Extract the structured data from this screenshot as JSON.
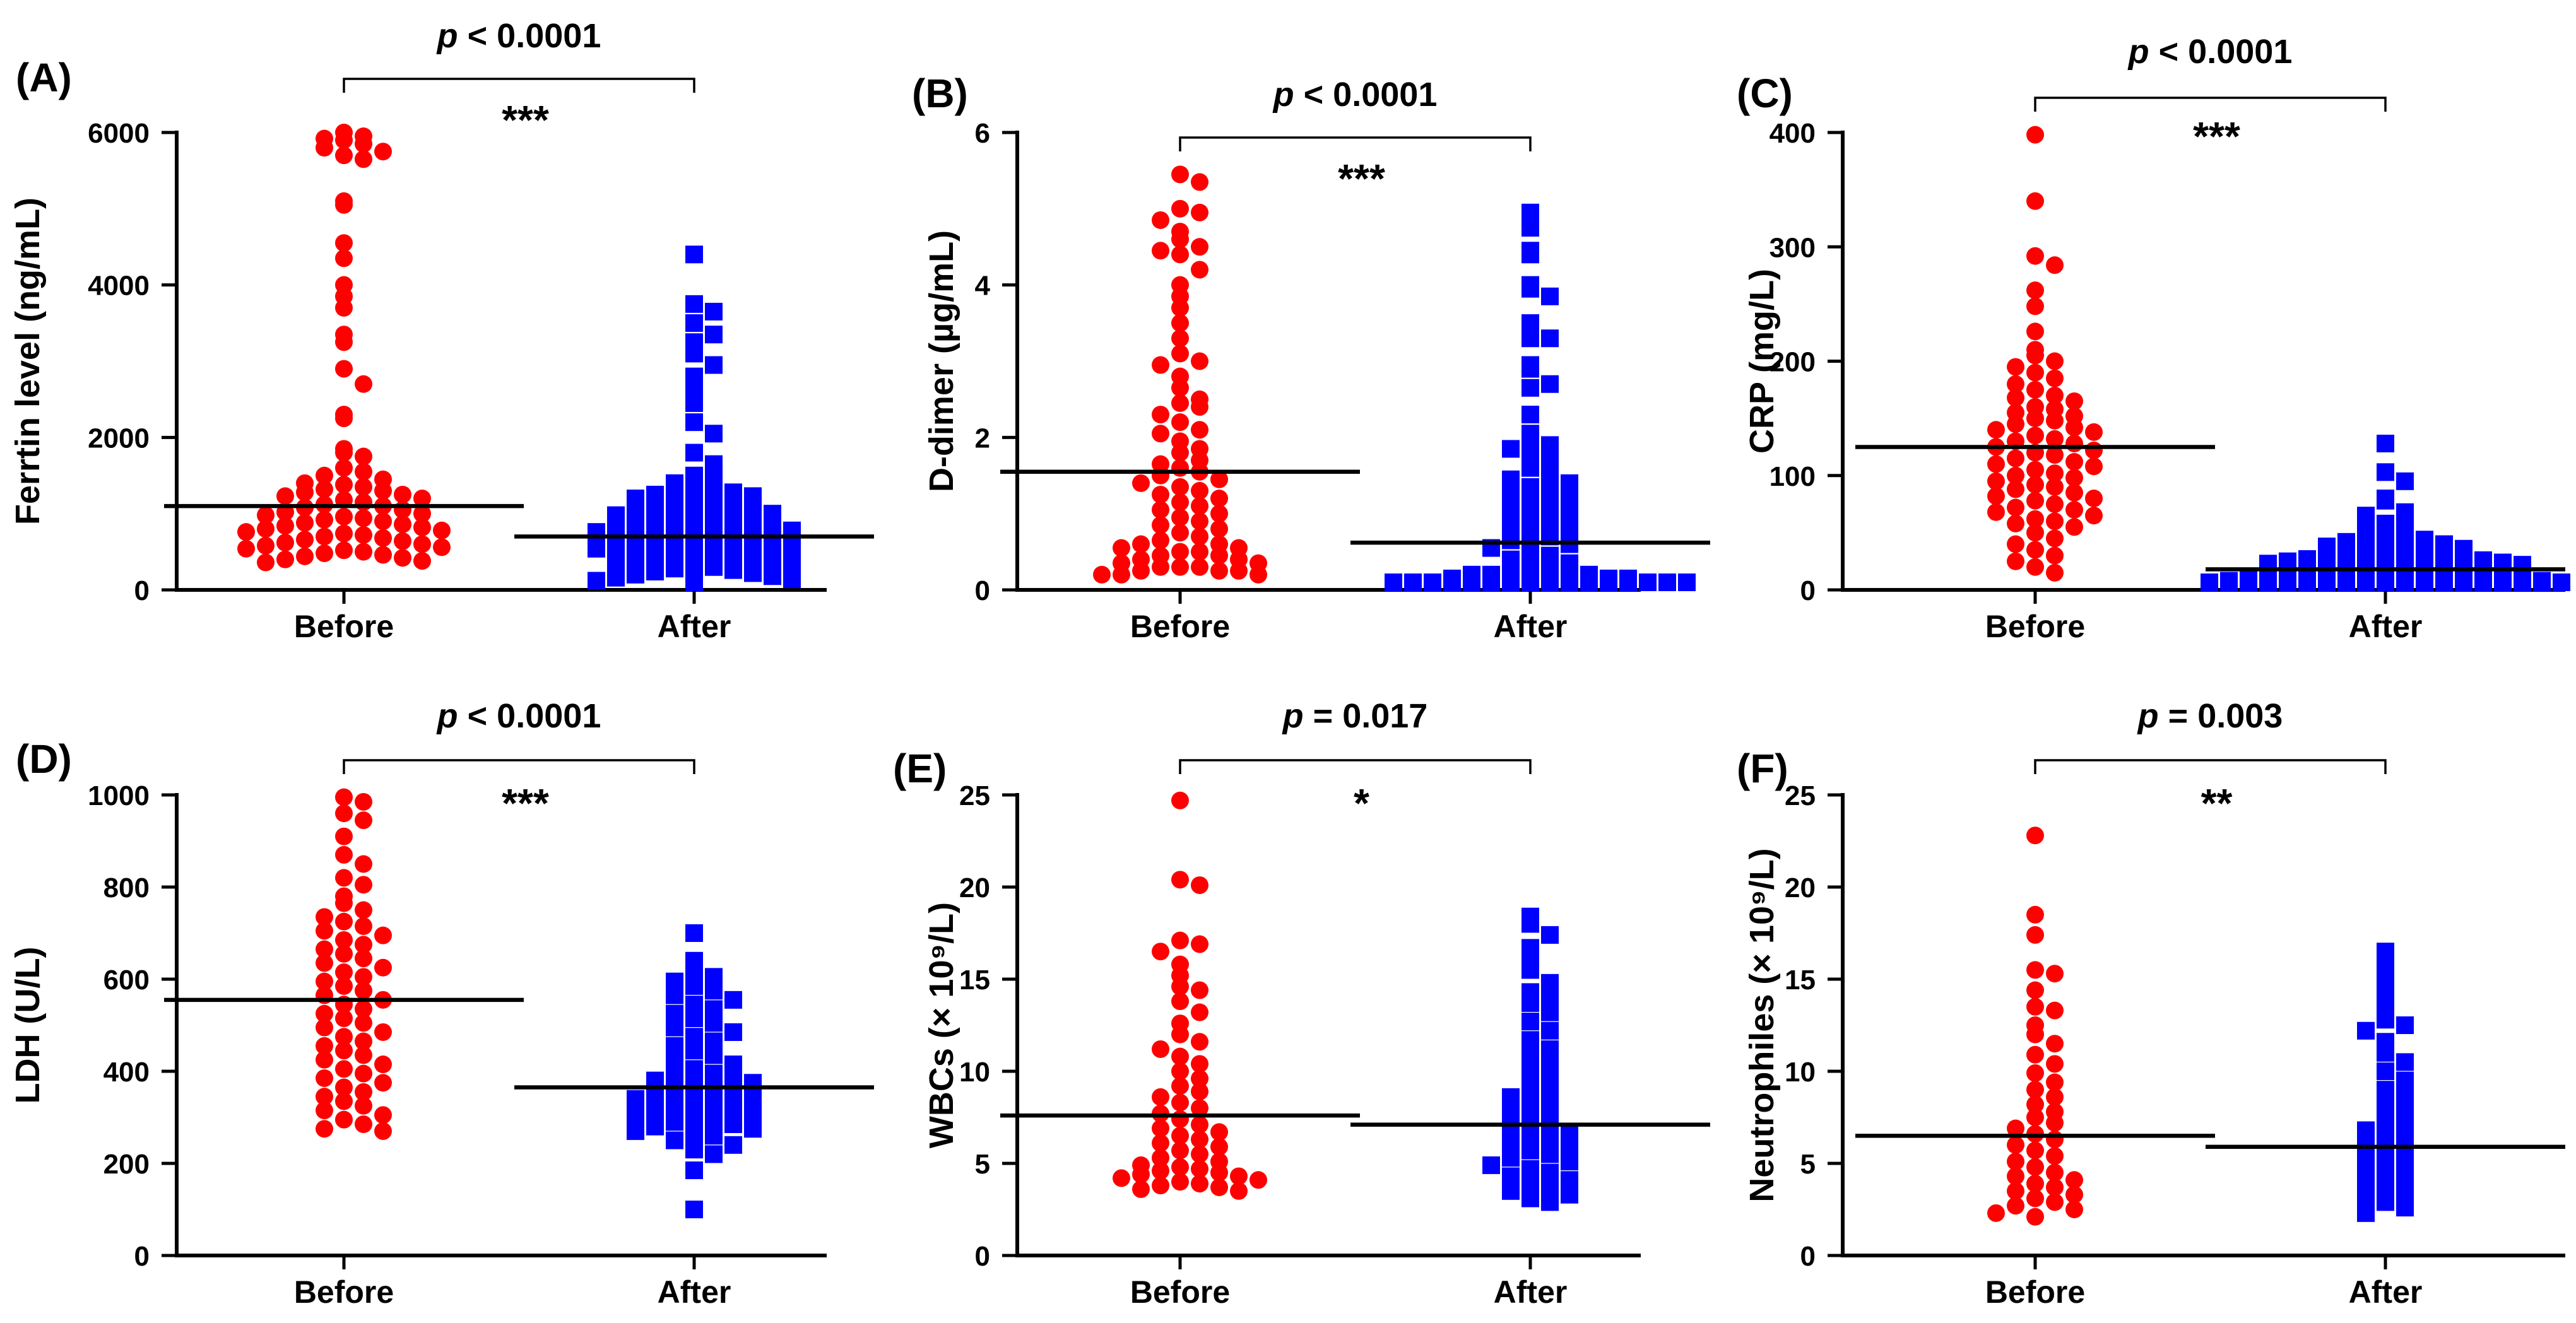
{
  "chart_data": [
    {
      "type": "scatter",
      "panel_label": "(A)",
      "ylabel": "Ferrtin level (ng/mL)",
      "ylim": [
        0,
        6000
      ],
      "yticks": [
        0,
        2000,
        4000,
        6000
      ],
      "categories": [
        "Before",
        "After"
      ],
      "p_text": " < 0.0001",
      "significance": "***",
      "series": [
        {
          "name": "Before",
          "color": "#ff0000",
          "marker": "circle",
          "median": 1100,
          "values": [
            6000,
            5950,
            5920,
            5900,
            5850,
            5800,
            5750,
            5700,
            5650,
            5100,
            5050,
            4550,
            4350,
            4000,
            3850,
            3700,
            3350,
            3250,
            2900,
            2700,
            2300,
            2250,
            1850,
            1800,
            1750,
            1600,
            1550,
            1500,
            1450,
            1400,
            1380,
            1350,
            1320,
            1300,
            1280,
            1250,
            1230,
            1200,
            1180,
            1150,
            1120,
            1100,
            1080,
            1050,
            1020,
            1000,
            980,
            960,
            940,
            920,
            900,
            880,
            860,
            840,
            820,
            800,
            780,
            760,
            740,
            720,
            700,
            680,
            660,
            640,
            620,
            600,
            580,
            560,
            540,
            520,
            500,
            480,
            460,
            440,
            420,
            400,
            380,
            360
          ]
        },
        {
          "name": "After",
          "color": "#0000ff",
          "marker": "square",
          "median": 700,
          "values": [
            4400,
            3750,
            3650,
            3500,
            3350,
            3250,
            3100,
            2950,
            2800,
            2600,
            2450,
            2200,
            2050,
            1800,
            1650,
            1500,
            1450,
            1400,
            1380,
            1350,
            1300,
            1280,
            1250,
            1230,
            1200,
            1180,
            1150,
            1120,
            1100,
            1080,
            1050,
            1020,
            1000,
            980,
            960,
            940,
            920,
            900,
            880,
            860,
            840,
            820,
            800,
            780,
            760,
            740,
            720,
            700,
            680,
            660,
            640,
            620,
            600,
            580,
            560,
            540,
            520,
            500,
            480,
            460,
            440,
            420,
            400,
            380,
            360,
            340,
            320,
            300,
            280,
            260,
            240,
            220,
            200,
            180,
            160,
            140,
            120,
            100
          ]
        }
      ]
    },
    {
      "type": "scatter",
      "panel_label": "(B)",
      "ylabel": "D-dimer (µg/mL)",
      "ylim": [
        0,
        6
      ],
      "yticks": [
        0,
        2,
        4,
        6
      ],
      "categories": [
        "Before",
        "After"
      ],
      "p_text": " < 0.0001",
      "significance": "***",
      "series": [
        {
          "name": "Before",
          "color": "#ff0000",
          "marker": "circle",
          "median": 1.55,
          "values": [
            5.45,
            5.35,
            5.0,
            4.95,
            4.85,
            4.7,
            4.6,
            4.5,
            4.45,
            4.4,
            4.2,
            4.0,
            3.85,
            3.7,
            3.5,
            3.3,
            3.1,
            3.0,
            2.95,
            2.8,
            2.65,
            2.5,
            2.45,
            2.4,
            2.3,
            2.2,
            2.1,
            2.05,
            1.95,
            1.85,
            1.8,
            1.7,
            1.65,
            1.6,
            1.55,
            1.5,
            1.45,
            1.4,
            1.35,
            1.3,
            1.25,
            1.2,
            1.15,
            1.1,
            1.05,
            1.0,
            0.95,
            0.9,
            0.85,
            0.8,
            0.75,
            0.7,
            0.65,
            0.6,
            0.6,
            0.55,
            0.55,
            0.5,
            0.5,
            0.45,
            0.45,
            0.4,
            0.4,
            0.35,
            0.35,
            0.3,
            0.3,
            0.3,
            0.25,
            0.25,
            0.25,
            0.2,
            0.2,
            0.2
          ]
        },
        {
          "name": "After",
          "color": "#0000ff",
          "marker": "square",
          "median": 0.62,
          "values": [
            4.95,
            4.75,
            4.45,
            4.4,
            4.0,
            3.95,
            3.85,
            3.5,
            3.3,
            3.3,
            2.95,
            2.9,
            2.7,
            2.65,
            2.3,
            2.05,
            1.95,
            1.9,
            1.85,
            1.75,
            1.7,
            1.6,
            1.5,
            1.45,
            1.4,
            1.35,
            1.3,
            1.25,
            1.2,
            1.15,
            1.1,
            1.05,
            1.0,
            0.95,
            0.9,
            0.85,
            0.8,
            0.75,
            0.7,
            0.65,
            0.6,
            0.55,
            0.5,
            0.45,
            0.4,
            0.35,
            0.3,
            0.3,
            0.25,
            0.25,
            0.2,
            0.2,
            0.2,
            0.15,
            0.15,
            0.15,
            0.1,
            0.1,
            0.1,
            0.1,
            0.05,
            0.05,
            0.05,
            0.05,
            0.05,
            0.05,
            0.05,
            0.05,
            0.05,
            0.05,
            0.05,
            0.05
          ]
        }
      ]
    },
    {
      "type": "scatter",
      "panel_label": "(C)",
      "ylabel": "CRP (mg/L)",
      "ylim": [
        0,
        400
      ],
      "yticks": [
        0,
        100,
        200,
        300,
        400
      ],
      "categories": [
        "Before",
        "After"
      ],
      "p_text": " < 0.0001",
      "significance": "***",
      "series": [
        {
          "name": "Before",
          "color": "#ff0000",
          "marker": "circle",
          "median": 125,
          "values": [
            398,
            340,
            292,
            284,
            262,
            248,
            226,
            210,
            205,
            200,
            195,
            190,
            185,
            180,
            175,
            170,
            168,
            165,
            160,
            158,
            155,
            152,
            150,
            148,
            145,
            142,
            140,
            138,
            135,
            132,
            130,
            128,
            125,
            122,
            120,
            118,
            115,
            112,
            110,
            108,
            105,
            102,
            100,
            98,
            95,
            92,
            90,
            88,
            85,
            82,
            80,
            78,
            75,
            72,
            70,
            68,
            65,
            62,
            60,
            58,
            55,
            50,
            45,
            40,
            35,
            30,
            25,
            20,
            15
          ]
        },
        {
          "name": "After",
          "color": "#0000ff",
          "marker": "square",
          "median": 18,
          "values": [
            128,
            103,
            95,
            80,
            78,
            68,
            65,
            58,
            55,
            52,
            50,
            48,
            46,
            44,
            42,
            40,
            38,
            36,
            35,
            34,
            33,
            32,
            31,
            30,
            29,
            28,
            27,
            26,
            25,
            24,
            23,
            22,
            21,
            20,
            19,
            18,
            17,
            16,
            15,
            14,
            13,
            12,
            11,
            10,
            10,
            9,
            9,
            8,
            8,
            7,
            7,
            6,
            6,
            5,
            5,
            5,
            4,
            4,
            4,
            3,
            3,
            3,
            2,
            2,
            2,
            2,
            2,
            2
          ]
        }
      ]
    },
    {
      "type": "scatter",
      "panel_label": "(D)",
      "ylabel": "LDH (U/L)",
      "ylim": [
        0,
        1000
      ],
      "yticks": [
        0,
        200,
        400,
        600,
        800,
        1000
      ],
      "categories": [
        "Before",
        "After"
      ],
      "p_text": " < 0.0001",
      "significance": "***",
      "series": [
        {
          "name": "Before",
          "color": "#ff0000",
          "marker": "circle",
          "median": 555,
          "values": [
            995,
            985,
            960,
            945,
            910,
            870,
            850,
            820,
            805,
            780,
            765,
            750,
            735,
            725,
            715,
            705,
            695,
            685,
            675,
            665,
            655,
            645,
            635,
            625,
            615,
            605,
            595,
            585,
            575,
            565,
            555,
            545,
            535,
            525,
            515,
            505,
            495,
            485,
            475,
            465,
            455,
            445,
            435,
            425,
            415,
            405,
            395,
            385,
            375,
            365,
            355,
            345,
            335,
            325,
            315,
            305,
            295,
            285,
            275,
            270
          ]
        },
        {
          "name": "After",
          "color": "#0000ff",
          "marker": "square",
          "median": 365,
          "values": [
            700,
            640,
            615,
            605,
            595,
            585,
            575,
            565,
            555,
            545,
            535,
            525,
            515,
            505,
            495,
            485,
            475,
            465,
            455,
            445,
            435,
            425,
            415,
            405,
            395,
            390,
            385,
            380,
            375,
            370,
            365,
            360,
            355,
            350,
            345,
            340,
            335,
            330,
            325,
            320,
            315,
            310,
            305,
            300,
            295,
            290,
            285,
            280,
            275,
            270,
            265,
            260,
            250,
            240,
            230,
            220,
            185,
            100
          ]
        }
      ]
    },
    {
      "type": "scatter",
      "panel_label": "(E)",
      "ylabel": "WBCs (× 10⁹/L)",
      "ylim": [
        0,
        25
      ],
      "yticks": [
        0,
        5,
        10,
        15,
        20,
        25
      ],
      "categories": [
        "Before",
        "After"
      ],
      "p_text": " = 0.017",
      "significance": "*",
      "series": [
        {
          "name": "Before",
          "color": "#ff0000",
          "marker": "circle",
          "median": 7.6,
          "values": [
            24.7,
            20.4,
            20.1,
            17.1,
            16.9,
            16.5,
            15.8,
            15.2,
            14.6,
            14.4,
            13.8,
            13.2,
            12.6,
            12.0,
            11.6,
            11.2,
            10.8,
            10.4,
            10.0,
            9.6,
            9.2,
            8.9,
            8.6,
            8.3,
            8.0,
            7.7,
            7.4,
            7.1,
            6.9,
            6.7,
            6.5,
            6.3,
            6.1,
            5.9,
            5.7,
            5.5,
            5.3,
            5.1,
            4.9,
            4.8,
            4.7,
            4.6,
            4.5,
            4.4,
            4.3,
            4.2,
            4.1,
            4.0,
            3.9,
            3.8,
            3.7,
            3.6,
            3.5
          ]
        },
        {
          "name": "After",
          "color": "#0000ff",
          "marker": "square",
          "median": 7.1,
          "values": [
            18.4,
            18.0,
            17.4,
            16.7,
            16.0,
            15.5,
            14.8,
            14.3,
            14.0,
            13.7,
            13.2,
            12.7,
            12.2,
            11.7,
            11.2,
            10.8,
            10.4,
            10.0,
            9.6,
            9.2,
            8.9,
            8.6,
            8.3,
            8.0,
            7.7,
            7.4,
            7.1,
            6.9,
            6.7,
            6.5,
            6.3,
            6.1,
            5.9,
            5.7,
            5.5,
            5.3,
            5.1,
            4.9,
            4.7,
            4.5,
            4.3,
            4.1,
            3.9,
            3.7,
            3.5,
            3.3,
            3.1,
            2.9
          ]
        }
      ]
    },
    {
      "type": "scatter",
      "panel_label": "(F)",
      "ylabel": "Neutrophiles (× 10⁹/L)",
      "ylim": [
        0,
        25
      ],
      "yticks": [
        0,
        5,
        10,
        15,
        20,
        25
      ],
      "categories": [
        "Before",
        "After"
      ],
      "p_text": " = 0.003",
      "significance": "**",
      "series": [
        {
          "name": "Before",
          "color": "#ff0000",
          "marker": "circle",
          "median": 6.5,
          "values": [
            22.8,
            18.5,
            17.4,
            15.5,
            15.3,
            14.4,
            13.5,
            13.3,
            12.5,
            12.0,
            11.5,
            10.9,
            10.4,
            9.9,
            9.4,
            9.0,
            8.6,
            8.2,
            7.8,
            7.5,
            7.2,
            6.9,
            6.6,
            6.3,
            6.0,
            5.7,
            5.4,
            5.1,
            4.8,
            4.5,
            4.3,
            4.1,
            3.9,
            3.7,
            3.5,
            3.3,
            3.1,
            2.9,
            2.7,
            2.5,
            2.3,
            2.1
          ]
        },
        {
          "name": "After",
          "color": "#0000ff",
          "marker": "square",
          "median": 5.9,
          "values": [
            16.5,
            15.8,
            15.0,
            14.3,
            13.6,
            12.8,
            12.5,
            12.2,
            11.6,
            11.0,
            10.5,
            10.0,
            9.5,
            9.0,
            8.6,
            8.2,
            7.8,
            7.4,
            7.1,
            6.8,
            6.5,
            6.2,
            5.9,
            5.6,
            5.3,
            5.0,
            4.7,
            4.4,
            4.1,
            3.8,
            3.5,
            3.2,
            2.9,
            2.6,
            2.3
          ]
        }
      ]
    }
  ]
}
